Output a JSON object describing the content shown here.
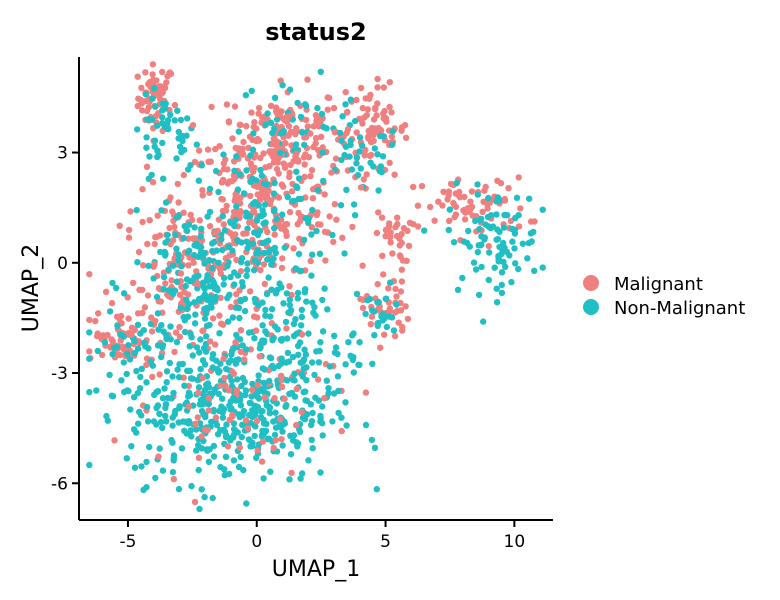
{
  "chart_data": {
    "type": "scatter",
    "title": "status2",
    "xlabel": "UMAP_1",
    "ylabel": "UMAP_2",
    "xlim": [
      -6.9,
      11.5
    ],
    "ylim": [
      -7.0,
      5.6
    ],
    "x_ticks": [
      -5,
      0,
      5,
      10
    ],
    "y_ticks": [
      3,
      0,
      -3,
      -6
    ],
    "grid": false,
    "legend_position": "right",
    "series": [
      {
        "name": "Malignant",
        "color": "#F08080"
      },
      {
        "name": "Non-Malignant",
        "color": "#1FBFC4"
      }
    ],
    "clusters": [
      {
        "series": 0,
        "cx": -3.9,
        "cy": 4.5,
        "sx": 0.35,
        "sy": 0.45,
        "n": 60
      },
      {
        "series": 1,
        "cx": -3.6,
        "cy": 3.5,
        "sx": 0.6,
        "sy": 0.5,
        "n": 45
      },
      {
        "series": 0,
        "cx": 1.0,
        "cy": 3.6,
        "sx": 1.2,
        "sy": 0.6,
        "n": 140
      },
      {
        "series": 1,
        "cx": 1.5,
        "cy": 3.8,
        "sx": 1.1,
        "sy": 0.6,
        "n": 40
      },
      {
        "series": 0,
        "cx": 4.5,
        "cy": 3.6,
        "sx": 0.7,
        "sy": 0.6,
        "n": 80
      },
      {
        "series": 1,
        "cx": 4.0,
        "cy": 2.8,
        "sx": 0.8,
        "sy": 0.5,
        "n": 35
      },
      {
        "series": 0,
        "cx": 0.3,
        "cy": 1.6,
        "sx": 1.6,
        "sy": 1.0,
        "n": 260
      },
      {
        "series": 1,
        "cx": 0.0,
        "cy": 1.2,
        "sx": 1.6,
        "sy": 1.0,
        "n": 110
      },
      {
        "series": 0,
        "cx": 5.3,
        "cy": 0.7,
        "sx": 0.35,
        "sy": 0.35,
        "n": 30
      },
      {
        "series": 0,
        "cx": 5.0,
        "cy": -1.2,
        "sx": 0.45,
        "sy": 0.5,
        "n": 40
      },
      {
        "series": 1,
        "cx": 4.8,
        "cy": -1.4,
        "sx": 0.45,
        "sy": 0.4,
        "n": 25
      },
      {
        "series": 0,
        "cx": 8.5,
        "cy": 1.5,
        "sx": 1.0,
        "sy": 0.4,
        "n": 70
      },
      {
        "series": 1,
        "cx": 9.2,
        "cy": 0.6,
        "sx": 0.9,
        "sy": 0.7,
        "n": 90
      },
      {
        "series": 0,
        "cx": -2.5,
        "cy": -0.5,
        "sx": 1.4,
        "sy": 1.2,
        "n": 190
      },
      {
        "series": 1,
        "cx": -2.0,
        "cy": -0.6,
        "sx": 1.4,
        "sy": 1.2,
        "n": 190
      },
      {
        "series": 0,
        "cx": -5.2,
        "cy": -2.0,
        "sx": 0.6,
        "sy": 0.35,
        "n": 60
      },
      {
        "series": 1,
        "cx": -5.0,
        "cy": -2.6,
        "sx": 0.7,
        "sy": 0.6,
        "n": 40
      },
      {
        "series": 1,
        "cx": -1.0,
        "cy": -4.0,
        "sx": 2.0,
        "sy": 1.0,
        "n": 420
      },
      {
        "series": 0,
        "cx": -0.5,
        "cy": -3.5,
        "sx": 1.8,
        "sy": 1.0,
        "n": 80
      },
      {
        "series": 1,
        "cx": 1.5,
        "cy": -2.2,
        "sx": 1.2,
        "sy": 0.9,
        "n": 110
      }
    ]
  }
}
